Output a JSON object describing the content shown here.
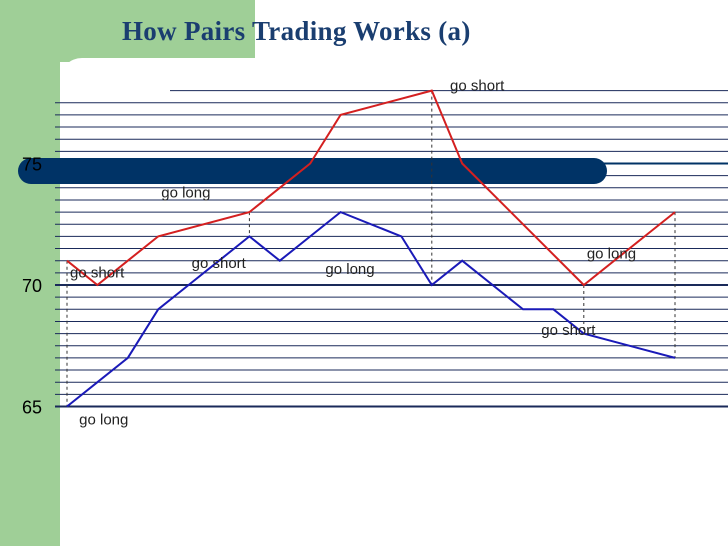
{
  "slide": {
    "title": "How Pairs Trading Works (a)"
  },
  "colors": {
    "background_green": "#9fcf97",
    "title_navy": "#1a3e70",
    "band_navy": "#003366",
    "series_red": "#d42020",
    "series_blue": "#1a1ab8",
    "gridline": "#1a2a5a"
  },
  "chart_data": {
    "type": "line",
    "x": [
      0,
      1,
      2,
      3,
      4,
      5,
      6,
      7,
      8,
      9,
      10,
      11,
      12,
      13,
      14,
      15,
      16,
      17,
      18,
      19,
      20,
      21,
      22
    ],
    "ylim": [
      65,
      78
    ],
    "yticks": [
      {
        "value": 65,
        "label": "65"
      },
      {
        "value": 70,
        "label": "70"
      },
      {
        "value": 75,
        "label": "75"
      }
    ],
    "grid": "horizontal",
    "series": [
      {
        "color": "#d42020",
        "points": [
          [
            0,
            71
          ],
          [
            1,
            70
          ],
          [
            3,
            72
          ],
          [
            6,
            73
          ],
          [
            7,
            74
          ],
          [
            8,
            75
          ],
          [
            9,
            77
          ],
          [
            12,
            78
          ],
          [
            13,
            75
          ],
          [
            17,
            70
          ],
          [
            19,
            72
          ],
          [
            20,
            73
          ]
        ]
      },
      {
        "color": "#1a1ab8",
        "points": [
          [
            0,
            65
          ],
          [
            1,
            66
          ],
          [
            2,
            67
          ],
          [
            3,
            69
          ],
          [
            4,
            70
          ],
          [
            5,
            71
          ],
          [
            6,
            72
          ],
          [
            7,
            71
          ],
          [
            8,
            72
          ],
          [
            9,
            73
          ],
          [
            11,
            72
          ],
          [
            12,
            70
          ],
          [
            13,
            71
          ],
          [
            15,
            69
          ],
          [
            16,
            69
          ],
          [
            17,
            68
          ],
          [
            20,
            67
          ]
        ]
      }
    ],
    "annotations": [
      {
        "text": "go short",
        "x": 0.1,
        "y": 70.3
      },
      {
        "text": "go long",
        "x": 0.4,
        "y": 64.25
      },
      {
        "text": "go long",
        "x": 3.1,
        "y": 73.6
      },
      {
        "text": "go short",
        "x": 4.1,
        "y": 70.7
      },
      {
        "text": "go long",
        "x": 8.5,
        "y": 70.45
      },
      {
        "text": "go short",
        "x": 12.6,
        "y": 78.0
      },
      {
        "text": "go long",
        "x": 17.1,
        "y": 71.1
      },
      {
        "text": "go short",
        "x": 15.6,
        "y": 67.95
      }
    ],
    "event_x": [
      0,
      6,
      12,
      17,
      20
    ]
  }
}
